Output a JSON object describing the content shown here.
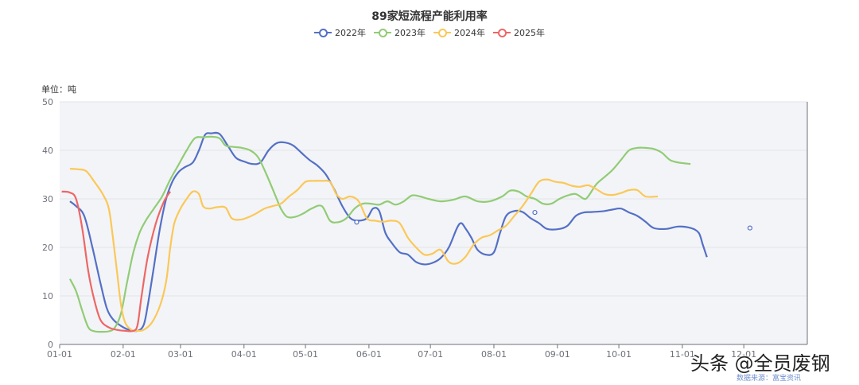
{
  "chart_data": {
    "type": "line",
    "title": "89家短流程产能利用率",
    "unit_label": "单位：吨",
    "ylim": [
      0,
      50
    ],
    "yticks": [
      0,
      10,
      20,
      30,
      40,
      50
    ],
    "xaxis": {
      "ticks": [
        "01-01",
        "02-01",
        "03-01",
        "04-01",
        "05-01",
        "06-01",
        "07-01",
        "08-01",
        "09-01",
        "10-01",
        "11-01",
        "12-01"
      ],
      "tick_days": [
        0,
        31,
        59,
        90,
        120,
        151,
        181,
        212,
        243,
        273,
        304,
        334
      ],
      "range_days": [
        0,
        365
      ]
    },
    "grid": true,
    "legend_position": "top-center",
    "series": [
      {
        "name": "2022年",
        "color": "#5470c6",
        "points": [
          [
            5,
            29.5
          ],
          [
            8,
            28.5
          ],
          [
            12,
            26.5
          ],
          [
            16,
            20
          ],
          [
            20,
            12.5
          ],
          [
            23,
            7.5
          ],
          [
            26,
            5.2
          ],
          [
            30,
            3.8
          ],
          [
            34,
            3
          ],
          [
            38,
            2.8
          ],
          [
            41,
            4
          ],
          [
            43,
            8
          ],
          [
            46,
            16
          ],
          [
            49,
            24
          ],
          [
            52,
            30
          ],
          [
            55,
            33.5
          ],
          [
            58,
            35.5
          ],
          [
            61,
            36.5
          ],
          [
            65,
            37.5
          ],
          [
            68,
            40
          ],
          [
            71,
            43.2
          ],
          [
            74,
            43.5
          ],
          [
            78,
            43.4
          ],
          [
            82,
            41
          ],
          [
            86,
            38.5
          ],
          [
            90,
            37.7
          ],
          [
            94,
            37.2
          ],
          [
            98,
            37.5
          ],
          [
            102,
            40
          ],
          [
            106,
            41.5
          ],
          [
            110,
            41.6
          ],
          [
            114,
            41
          ],
          [
            118,
            39.5
          ],
          [
            122,
            38
          ],
          [
            126,
            36.8
          ],
          [
            130,
            35
          ],
          [
            134,
            32
          ],
          [
            138,
            28.5
          ],
          [
            142,
            26
          ],
          [
            146,
            25.5
          ],
          [
            150,
            26
          ],
          [
            153,
            28
          ],
          [
            156,
            27.5
          ],
          [
            159,
            23
          ],
          [
            162,
            21
          ],
          [
            166,
            19
          ],
          [
            170,
            18.5
          ],
          [
            174,
            17
          ],
          [
            178,
            16.5
          ],
          [
            182,
            16.8
          ],
          [
            186,
            17.8
          ],
          [
            190,
            20
          ],
          [
            194,
            24
          ],
          [
            196,
            25
          ],
          [
            198,
            24
          ],
          [
            201,
            22
          ],
          [
            204,
            19.5
          ],
          [
            208,
            18.5
          ],
          [
            212,
            19
          ],
          [
            215,
            23
          ],
          [
            218,
            26.5
          ],
          [
            222,
            27.5
          ],
          [
            226,
            27.3
          ],
          [
            230,
            26
          ],
          [
            234,
            25
          ],
          [
            238,
            23.8
          ],
          [
            244,
            23.8
          ],
          [
            248,
            24.5
          ],
          [
            252,
            26.5
          ],
          [
            256,
            27.2
          ],
          [
            260,
            27.3
          ],
          [
            266,
            27.5
          ],
          [
            270,
            27.8
          ],
          [
            274,
            28
          ],
          [
            278,
            27.2
          ],
          [
            282,
            26.5
          ],
          [
            286,
            25.3
          ],
          [
            290,
            24
          ],
          [
            296,
            23.8
          ],
          [
            302,
            24.3
          ],
          [
            308,
            24
          ],
          [
            312,
            23
          ],
          [
            314,
            20.5
          ],
          [
            316,
            18
          ]
        ]
      },
      {
        "name": "2023年",
        "color": "#91cc75",
        "points": [
          [
            5,
            13.5
          ],
          [
            8,
            11
          ],
          [
            11,
            7
          ],
          [
            14,
            3.5
          ],
          [
            17,
            2.7
          ],
          [
            20,
            2.6
          ],
          [
            24,
            2.7
          ],
          [
            27,
            3.5
          ],
          [
            30,
            6.5
          ],
          [
            33,
            13
          ],
          [
            36,
            19
          ],
          [
            39,
            23
          ],
          [
            42,
            25.5
          ],
          [
            46,
            28
          ],
          [
            50,
            30.5
          ],
          [
            54,
            34
          ],
          [
            58,
            37
          ],
          [
            62,
            40
          ],
          [
            66,
            42.5
          ],
          [
            70,
            42.7
          ],
          [
            74,
            42.8
          ],
          [
            78,
            42.5
          ],
          [
            81,
            41
          ],
          [
            85,
            40.7
          ],
          [
            89,
            40.5
          ],
          [
            93,
            40
          ],
          [
            97,
            38.5
          ],
          [
            101,
            35
          ],
          [
            105,
            31
          ],
          [
            108,
            28
          ],
          [
            111,
            26.3
          ],
          [
            115,
            26.3
          ],
          [
            119,
            27
          ],
          [
            123,
            28
          ],
          [
            128,
            28.5
          ],
          [
            132,
            25.5
          ],
          [
            136,
            25.2
          ],
          [
            140,
            26
          ],
          [
            144,
            28
          ],
          [
            148,
            29
          ],
          [
            152,
            29
          ],
          [
            156,
            28.8
          ],
          [
            160,
            29.5
          ],
          [
            164,
            28.8
          ],
          [
            168,
            29.5
          ],
          [
            172,
            30.7
          ],
          [
            176,
            30.5
          ],
          [
            180,
            30
          ],
          [
            186,
            29.5
          ],
          [
            192,
            29.8
          ],
          [
            198,
            30.5
          ],
          [
            204,
            29.5
          ],
          [
            210,
            29.5
          ],
          [
            216,
            30.5
          ],
          [
            220,
            31.7
          ],
          [
            224,
            31.5
          ],
          [
            228,
            30.5
          ],
          [
            232,
            30
          ],
          [
            236,
            29
          ],
          [
            240,
            29
          ],
          [
            244,
            30
          ],
          [
            248,
            30.7
          ],
          [
            252,
            31
          ],
          [
            256,
            30
          ],
          [
            258,
            30.5
          ],
          [
            262,
            33
          ],
          [
            266,
            34.5
          ],
          [
            270,
            36
          ],
          [
            274,
            38
          ],
          [
            278,
            40
          ],
          [
            282,
            40.5
          ],
          [
            286,
            40.5
          ],
          [
            290,
            40.3
          ],
          [
            294,
            39.5
          ],
          [
            298,
            38
          ],
          [
            302,
            37.5
          ],
          [
            308,
            37.2
          ]
        ]
      },
      {
        "name": "2024年",
        "color": "#fac858",
        "points": [
          [
            5,
            36.2
          ],
          [
            9,
            36.1
          ],
          [
            13,
            35.7
          ],
          [
            17,
            33.5
          ],
          [
            21,
            31
          ],
          [
            24,
            28
          ],
          [
            26,
            22
          ],
          [
            28,
            15
          ],
          [
            30,
            8
          ],
          [
            32,
            4.5
          ],
          [
            35,
            3
          ],
          [
            38,
            2.8
          ],
          [
            41,
            3
          ],
          [
            45,
            4.5
          ],
          [
            49,
            8
          ],
          [
            52,
            13
          ],
          [
            54,
            20
          ],
          [
            56,
            25
          ],
          [
            59,
            28
          ],
          [
            62,
            30
          ],
          [
            65,
            31.5
          ],
          [
            68,
            31
          ],
          [
            70,
            28.5
          ],
          [
            73,
            28
          ],
          [
            77,
            28.3
          ],
          [
            81,
            28.2
          ],
          [
            84,
            26
          ],
          [
            88,
            25.7
          ],
          [
            92,
            26.2
          ],
          [
            96,
            27
          ],
          [
            100,
            28
          ],
          [
            104,
            28.5
          ],
          [
            108,
            29
          ],
          [
            112,
            30.5
          ],
          [
            116,
            31.8
          ],
          [
            120,
            33.5
          ],
          [
            124,
            33.7
          ],
          [
            128,
            33.7
          ],
          [
            132,
            33.5
          ],
          [
            135,
            31
          ],
          [
            138,
            30
          ],
          [
            142,
            30.5
          ],
          [
            146,
            29.5
          ],
          [
            150,
            26
          ],
          [
            154,
            25.5
          ],
          [
            158,
            25.3
          ],
          [
            162,
            25.5
          ],
          [
            166,
            25
          ],
          [
            170,
            22
          ],
          [
            174,
            20
          ],
          [
            178,
            18.5
          ],
          [
            182,
            18.7
          ],
          [
            186,
            19.5
          ],
          [
            190,
            17
          ],
          [
            194,
            16.7
          ],
          [
            198,
            18
          ],
          [
            202,
            20.5
          ],
          [
            206,
            22
          ],
          [
            210,
            22.5
          ],
          [
            214,
            23.5
          ],
          [
            218,
            24.5
          ],
          [
            222,
            26.5
          ],
          [
            226,
            28.5
          ],
          [
            230,
            31
          ],
          [
            234,
            33.5
          ],
          [
            238,
            34
          ],
          [
            242,
            33.5
          ],
          [
            246,
            33.3
          ],
          [
            250,
            32.7
          ],
          [
            254,
            32.5
          ],
          [
            258,
            32.8
          ],
          [
            262,
            32
          ],
          [
            266,
            31
          ],
          [
            270,
            30.8
          ],
          [
            274,
            31.2
          ],
          [
            278,
            31.8
          ],
          [
            282,
            31.8
          ],
          [
            286,
            30.5
          ],
          [
            292,
            30.5
          ]
        ]
      },
      {
        "name": "2025年",
        "color": "#ee6666",
        "points": [
          [
            1,
            31.5
          ],
          [
            5,
            31.3
          ],
          [
            8,
            30
          ],
          [
            11,
            24
          ],
          [
            14,
            15
          ],
          [
            17,
            9
          ],
          [
            20,
            5
          ],
          [
            24,
            3.5
          ],
          [
            28,
            3
          ],
          [
            32,
            2.8
          ],
          [
            36,
            2.8
          ],
          [
            38,
            4
          ],
          [
            40,
            10
          ],
          [
            43,
            18
          ],
          [
            47,
            25
          ],
          [
            51,
            29.5
          ],
          [
            54,
            31.5
          ]
        ]
      }
    ]
  },
  "markers": [
    {
      "series": 0,
      "day": 145,
      "value": 25.2
    },
    {
      "series": 0,
      "day": 232,
      "value": 27.2
    },
    {
      "series": 0,
      "day": 337,
      "value": 24
    }
  ],
  "watermark": "头条 @全员废钢",
  "source": "数据来源：富宝资讯"
}
